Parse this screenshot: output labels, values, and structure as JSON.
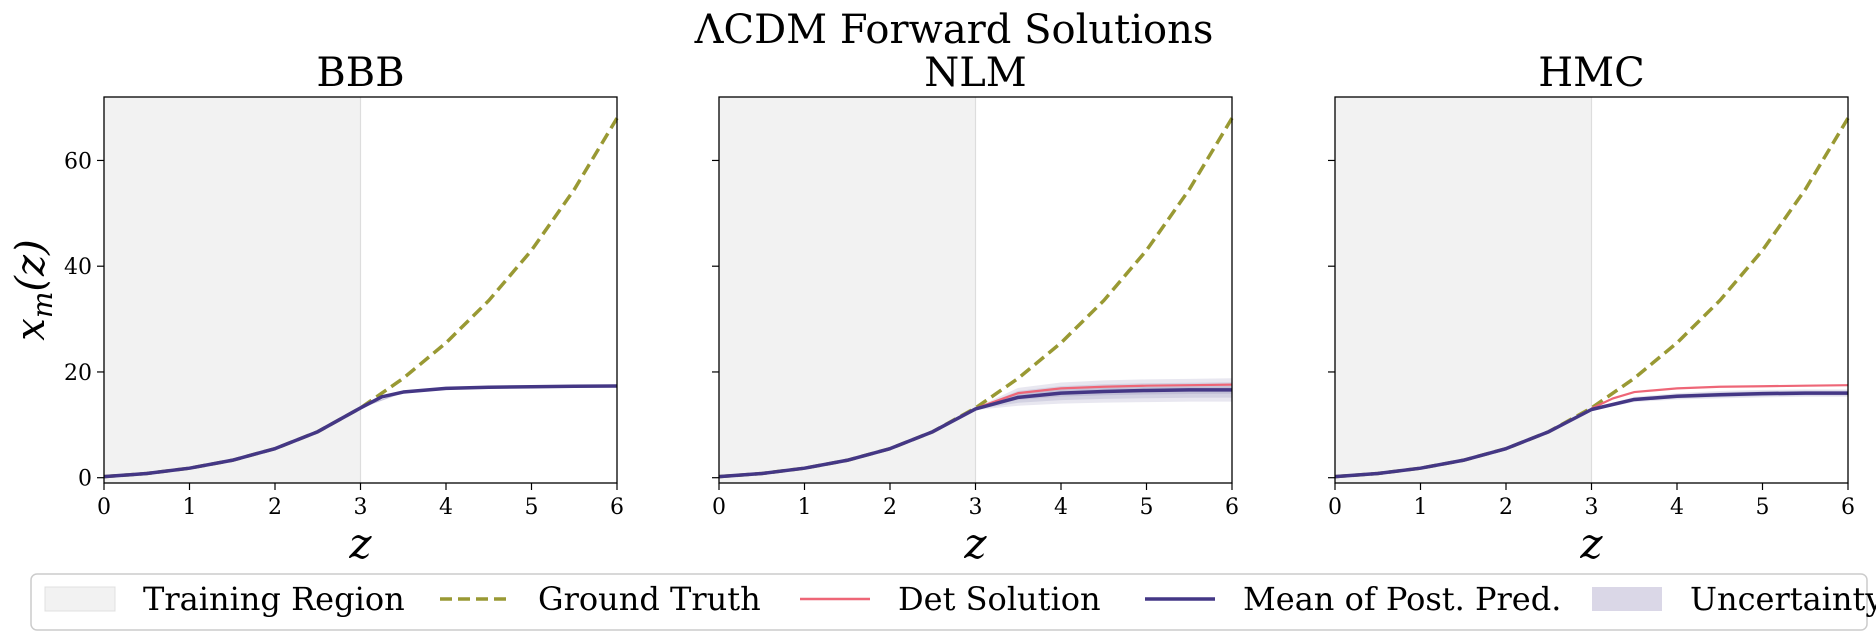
{
  "figure": {
    "suptitle": "ΛCDM Forward Solutions"
  },
  "colors": {
    "training_region": "#f2f2f2",
    "ground_truth": "#999933",
    "det_solution": "#ee6677",
    "mean_post_pred": "#443785",
    "uncertainty": "#443785"
  },
  "legend": {
    "items": [
      {
        "label": "Training Region",
        "kind": "patch-gray"
      },
      {
        "label": "Ground Truth",
        "kind": "dashed-olive"
      },
      {
        "label": "Det Solution",
        "kind": "line-red"
      },
      {
        "label": "Mean of Post. Pred.",
        "kind": "line-navy"
      },
      {
        "label": "Uncertainty",
        "kind": "patch-lavender"
      }
    ]
  },
  "chart_data": [
    {
      "type": "line",
      "title": "BBB",
      "xlabel": "z",
      "ylabel": "xm(z)",
      "xlim": [
        0,
        6
      ],
      "ylim": [
        -1,
        72
      ],
      "xticks": [
        0,
        1,
        2,
        3,
        4,
        5,
        6
      ],
      "yticks": [
        0,
        20,
        40,
        60
      ],
      "training_region": [
        0,
        3
      ],
      "ground_truth": {
        "x": [
          0,
          0.5,
          1,
          1.5,
          2,
          2.5,
          3,
          3.5,
          4,
          4.5,
          5,
          5.5,
          6
        ],
        "y": [
          0.2,
          0.8,
          1.8,
          3.3,
          5.5,
          8.7,
          13.2,
          18.8,
          25.5,
          33.5,
          43,
          54.5,
          68
        ]
      },
      "mean": {
        "x": [
          0,
          0.5,
          1,
          1.5,
          2,
          2.5,
          3,
          3.25,
          3.5,
          4,
          4.5,
          5,
          5.5,
          6
        ],
        "y": [
          0.2,
          0.8,
          1.8,
          3.3,
          5.5,
          8.7,
          13.2,
          15.3,
          16.2,
          16.9,
          17.1,
          17.2,
          17.3,
          17.35
        ]
      },
      "det": null,
      "band": {
        "x": [
          3,
          3.5,
          4,
          4.5,
          5,
          5.5,
          6
        ],
        "lower": [
          13.1,
          16.0,
          16.7,
          16.9,
          17.0,
          17.1,
          17.15
        ],
        "upper": [
          13.3,
          16.4,
          17.1,
          17.3,
          17.4,
          17.5,
          17.55
        ]
      }
    },
    {
      "type": "line",
      "title": "NLM",
      "xlabel": "z",
      "ylabel": "",
      "xlim": [
        0,
        6
      ],
      "ylim": [
        -1,
        72
      ],
      "xticks": [
        0,
        1,
        2,
        3,
        4,
        5,
        6
      ],
      "yticks": [
        0,
        20,
        40,
        60
      ],
      "training_region": [
        0,
        3
      ],
      "ground_truth": {
        "x": [
          0,
          0.5,
          1,
          1.5,
          2,
          2.5,
          3,
          3.5,
          4,
          4.5,
          5,
          5.5,
          6
        ],
        "y": [
          0.2,
          0.8,
          1.8,
          3.3,
          5.5,
          8.7,
          13.2,
          18.8,
          25.5,
          33.5,
          43,
          54.5,
          68
        ]
      },
      "mean": {
        "x": [
          0,
          0.5,
          1,
          1.5,
          2,
          2.5,
          3,
          3.5,
          4,
          4.5,
          5,
          5.5,
          6
        ],
        "y": [
          0.2,
          0.8,
          1.8,
          3.3,
          5.5,
          8.7,
          13.0,
          15.2,
          16.0,
          16.3,
          16.5,
          16.6,
          16.6
        ]
      },
      "det": {
        "x": [
          3,
          3.5,
          4,
          4.5,
          5,
          5.5,
          6
        ],
        "y": [
          13.1,
          16.0,
          16.9,
          17.2,
          17.4,
          17.5,
          17.6
        ]
      },
      "band": {
        "x": [
          3,
          3.5,
          4,
          4.5,
          5,
          5.5,
          6
        ],
        "lower": [
          12.8,
          13.6,
          14.0,
          14.2,
          14.3,
          14.4,
          14.4
        ],
        "upper": [
          13.2,
          17.0,
          18.0,
          18.4,
          18.6,
          18.7,
          18.8
        ]
      }
    },
    {
      "type": "line",
      "title": "HMC",
      "xlabel": "z",
      "ylabel": "",
      "xlim": [
        0,
        6
      ],
      "ylim": [
        -1,
        72
      ],
      "xticks": [
        0,
        1,
        2,
        3,
        4,
        5,
        6
      ],
      "yticks": [
        0,
        20,
        40,
        60
      ],
      "training_region": [
        0,
        3
      ],
      "ground_truth": {
        "x": [
          0,
          0.5,
          1,
          1.5,
          2,
          2.5,
          3,
          3.5,
          4,
          4.5,
          5,
          5.5,
          6
        ],
        "y": [
          0.2,
          0.8,
          1.8,
          3.3,
          5.5,
          8.7,
          13.2,
          18.8,
          25.5,
          33.5,
          43,
          54.5,
          68
        ]
      },
      "mean": {
        "x": [
          0,
          0.5,
          1,
          1.5,
          2,
          2.5,
          3,
          3.5,
          4,
          4.5,
          5,
          5.5,
          6
        ],
        "y": [
          0.2,
          0.8,
          1.8,
          3.3,
          5.5,
          8.7,
          12.9,
          14.8,
          15.4,
          15.7,
          15.9,
          16.0,
          16.0
        ]
      },
      "det": {
        "x": [
          3,
          3.25,
          3.5,
          4,
          4.5,
          5,
          5.5,
          6
        ],
        "y": [
          13.1,
          15.0,
          16.2,
          16.9,
          17.2,
          17.3,
          17.4,
          17.5
        ]
      },
      "band": {
        "x": [
          3,
          3.5,
          4,
          4.5,
          5,
          5.5,
          6
        ],
        "lower": [
          12.7,
          14.3,
          14.8,
          15.0,
          15.2,
          15.3,
          15.3
        ],
        "upper": [
          13.1,
          15.3,
          16.0,
          16.4,
          16.6,
          16.7,
          16.7
        ]
      }
    }
  ]
}
